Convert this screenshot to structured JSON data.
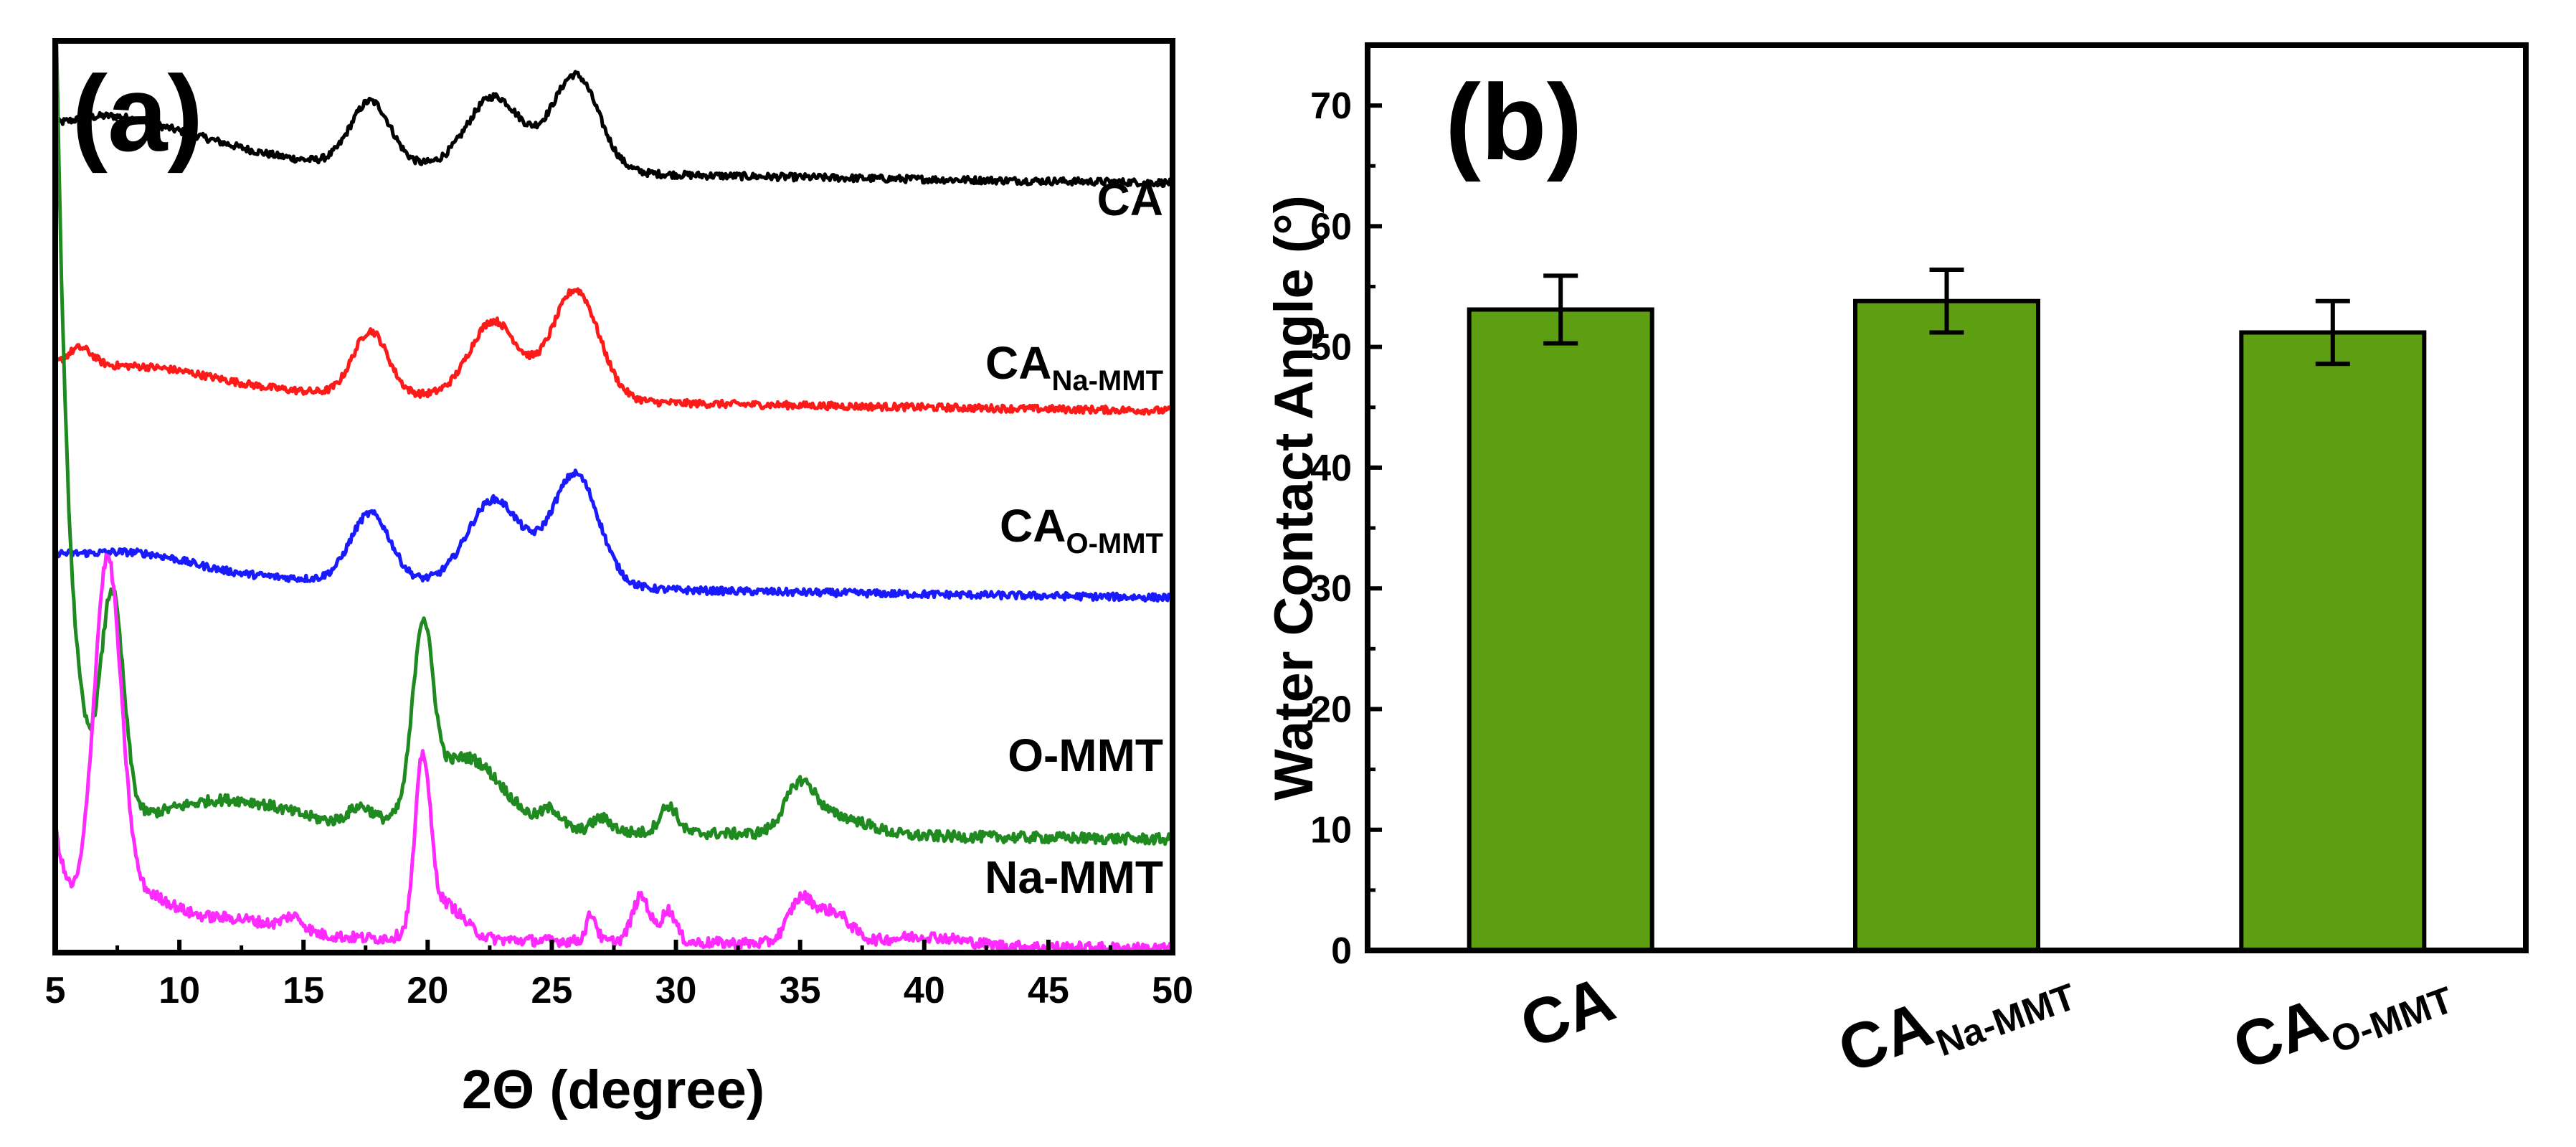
{
  "chart_data": [
    {
      "panel": "(a)",
      "type": "line",
      "title": "",
      "xlabel": "2Θ (degree)",
      "ylabel": "",
      "xlim": [
        5,
        50
      ],
      "xticks": [
        "5",
        "10",
        "15",
        "20",
        "25",
        "30",
        "35",
        "40",
        "45",
        "50"
      ],
      "y_axis": "arbitrary intensity, stacked traces, no tick labels",
      "series": [
        {
          "name": "CA",
          "label": "CA",
          "label_sub": "",
          "color": "#000000",
          "baseline": 0.86,
          "peaks": [
            [
              7.0,
              0.015,
              1.5
            ],
            [
              9.5,
              0.02,
              2.5
            ],
            [
              17.7,
              0.07,
              0.8
            ],
            [
              22.6,
              0.065,
              1.0
            ],
            [
              26.0,
              0.095,
              0.9
            ],
            [
              24.0,
              0.02,
              2.0
            ]
          ],
          "tail": 0.04,
          "tail_decay": 8,
          "noise": 0.004
        },
        {
          "name": "CA_Na-MMT",
          "label": "CA",
          "label_sub": "Na-MMT",
          "color": "#ff1a1a",
          "baseline": 0.61,
          "peaks": [
            [
              6.0,
              0.02,
              0.5
            ],
            [
              9.0,
              0.015,
              2.5
            ],
            [
              17.7,
              0.07,
              0.7
            ],
            [
              22.6,
              0.07,
              0.9
            ],
            [
              26.0,
              0.11,
              0.9
            ],
            [
              24.0,
              0.02,
              2.0
            ]
          ],
          "tail": 0.03,
          "tail_decay": 8,
          "noise": 0.004
        },
        {
          "name": "CA_O-MMT",
          "label": "CA",
          "label_sub": "O-MMT",
          "color": "#1a1aff",
          "baseline": 0.405,
          "peaks": [
            [
              8.5,
              0.015,
              2.0
            ],
            [
              17.7,
              0.075,
              0.8
            ],
            [
              22.6,
              0.075,
              1.0
            ],
            [
              26.0,
              0.11,
              0.9
            ],
            [
              24.0,
              0.025,
              2.0
            ]
          ],
          "tail": 0.03,
          "tail_decay": 8,
          "noise": 0.004
        },
        {
          "name": "O-MMT",
          "label": "O-MMT",
          "label_sub": "",
          "color": "#1f8a1f",
          "baseline": 0.14,
          "peaks": [
            [
              7.3,
              0.24,
              0.45
            ],
            [
              12.0,
              0.03,
              2.5
            ],
            [
              17.3,
              0.02,
              0.5
            ],
            [
              19.8,
              0.19,
              0.4
            ],
            [
              21.5,
              0.08,
              1.5
            ],
            [
              25.0,
              0.02,
              0.4
            ],
            [
              27.0,
              0.015,
              0.4
            ],
            [
              29.7,
              0.03,
              0.35
            ],
            [
              35.0,
              0.05,
              0.6
            ],
            [
              36.5,
              0.02,
              1.2
            ]
          ],
          "tail": 0.95,
          "tail_decay": 0.55,
          "noise": 0.006
        },
        {
          "name": "Na-MMT",
          "label": "Na-MMT",
          "label_sub": "",
          "color": "#ff2aff",
          "baseline": 0.02,
          "peaks": [
            [
              7.1,
              0.39,
              0.55
            ],
            [
              8.5,
              0.04,
              1.2
            ],
            [
              12.0,
              0.02,
              2.0
            ],
            [
              14.6,
              0.015,
              0.4
            ],
            [
              19.8,
              0.18,
              0.3
            ],
            [
              20.6,
              0.04,
              0.8
            ],
            [
              26.6,
              0.03,
              0.2
            ],
            [
              28.6,
              0.05,
              0.35
            ],
            [
              29.7,
              0.035,
              0.3
            ],
            [
              35.0,
              0.045,
              0.5
            ],
            [
              36.3,
              0.035,
              0.7
            ],
            [
              40.0,
              0.01,
              1.5
            ]
          ],
          "tail": 0.12,
          "tail_decay": 0.6,
          "noise": 0.006
        }
      ]
    },
    {
      "panel": "(b)",
      "type": "bar",
      "title": "",
      "xlabel": "",
      "ylabel": "Water Contact Angle (°)",
      "ylim": [
        0,
        75
      ],
      "yticks": [
        "0",
        "10",
        "20",
        "30",
        "40",
        "50",
        "60",
        "70"
      ],
      "categories": [
        {
          "main": "CA",
          "sub": ""
        },
        {
          "main": "CA",
          "sub": "Na-MMT"
        },
        {
          "main": "CA",
          "sub": "O-MMT"
        }
      ],
      "values": [
        53.1,
        53.8,
        51.2
      ],
      "errors": [
        2.8,
        2.6,
        2.6
      ],
      "bar_color": "#5e9e13"
    }
  ]
}
